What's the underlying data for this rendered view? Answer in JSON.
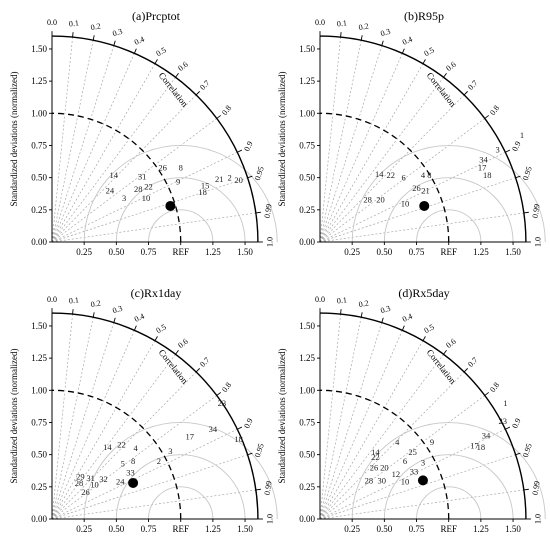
{
  "figure": {
    "ylabel": "Standardized deviations (normalized)",
    "corr_label": "Correlation",
    "ref_label": "REF"
  },
  "chart_data": [
    {
      "type": "scatter",
      "title": "(a)Prcptot",
      "ylabel": "Standardized deviations (normalized)",
      "arc_label": "Correlation",
      "std_ticks": [
        "0.00",
        "0.25",
        "0.50",
        "0.75",
        "1.00",
        "1.25",
        "1.50"
      ],
      "corr_ticks": [
        "0.0",
        "0.1",
        "0.2",
        "0.3",
        "0.4",
        "0.5",
        "0.6",
        "0.7",
        "0.8",
        "0.9",
        "0.95",
        "0.99",
        "1.0"
      ],
      "ref_label": "REF",
      "reference": {
        "std": 1.0,
        "corr": 1.0
      },
      "observation": {
        "x": 0.92,
        "y": 0.28
      },
      "models": [
        {
          "label": "26",
          "x": 0.86,
          "y": 0.58
        },
        {
          "label": "8",
          "x": 1.0,
          "y": 0.58
        },
        {
          "label": "14",
          "x": 0.48,
          "y": 0.52
        },
        {
          "label": "31",
          "x": 0.7,
          "y": 0.51
        },
        {
          "label": "9",
          "x": 0.98,
          "y": 0.47
        },
        {
          "label": "24",
          "x": 0.45,
          "y": 0.4
        },
        {
          "label": "22",
          "x": 0.75,
          "y": 0.43
        },
        {
          "label": "28",
          "x": 0.67,
          "y": 0.41
        },
        {
          "label": "2",
          "x": 1.38,
          "y": 0.5
        },
        {
          "label": "21",
          "x": 1.3,
          "y": 0.49
        },
        {
          "label": "20",
          "x": 1.45,
          "y": 0.48
        },
        {
          "label": "15",
          "x": 1.19,
          "y": 0.44
        },
        {
          "label": "18",
          "x": 1.17,
          "y": 0.39
        },
        {
          "label": "3",
          "x": 0.56,
          "y": 0.34
        },
        {
          "label": "10",
          "x": 0.73,
          "y": 0.34
        }
      ]
    },
    {
      "type": "scatter",
      "title": "(b)R95p",
      "ylabel": "Standardized deviations (normalized)",
      "arc_label": "Correlation",
      "std_ticks": [
        "0.00",
        "0.25",
        "0.50",
        "0.75",
        "1.00",
        "1.25",
        "1.50"
      ],
      "corr_ticks": [
        "0.0",
        "0.1",
        "0.2",
        "0.3",
        "0.4",
        "0.5",
        "0.6",
        "0.7",
        "0.8",
        "0.9",
        "0.95",
        "0.99",
        "1.0"
      ],
      "ref_label": "REF",
      "reference": {
        "std": 1.0,
        "corr": 1.0
      },
      "observation": {
        "x": 0.81,
        "y": 0.28
      },
      "models": [
        {
          "label": "1",
          "x": 1.57,
          "y": 0.83
        },
        {
          "label": "3",
          "x": 1.38,
          "y": 0.72
        },
        {
          "label": "34",
          "x": 1.27,
          "y": 0.64
        },
        {
          "label": "17",
          "x": 1.26,
          "y": 0.58
        },
        {
          "label": "18",
          "x": 1.3,
          "y": 0.52
        },
        {
          "label": "14",
          "x": 0.46,
          "y": 0.53
        },
        {
          "label": "22",
          "x": 0.55,
          "y": 0.52
        },
        {
          "label": "6",
          "x": 0.65,
          "y": 0.5
        },
        {
          "label": "4",
          "x": 0.8,
          "y": 0.52
        },
        {
          "label": "8",
          "x": 0.85,
          "y": 0.52
        },
        {
          "label": "26",
          "x": 0.75,
          "y": 0.42
        },
        {
          "label": "21",
          "x": 0.82,
          "y": 0.4
        },
        {
          "label": "28",
          "x": 0.37,
          "y": 0.33
        },
        {
          "label": "20",
          "x": 0.47,
          "y": 0.33
        },
        {
          "label": "10",
          "x": 0.66,
          "y": 0.3
        }
      ]
    },
    {
      "type": "scatter",
      "title": "(c)Rx1day",
      "ylabel": "Standardized deviations (normalized)",
      "arc_label": "Correlation",
      "std_ticks": [
        "0.00",
        "0.25",
        "0.50",
        "0.75",
        "1.00",
        "1.25",
        "1.50"
      ],
      "corr_ticks": [
        "0.0",
        "0.1",
        "0.2",
        "0.3",
        "0.4",
        "0.5",
        "0.6",
        "0.7",
        "0.8",
        "0.9",
        "0.95",
        "0.99",
        "1.0"
      ],
      "ref_label": "REF",
      "reference": {
        "std": 1.0,
        "corr": 1.0
      },
      "observation": {
        "x": 0.63,
        "y": 0.28
      },
      "models": [
        {
          "label": "23",
          "x": 1.32,
          "y": 0.9
        },
        {
          "label": "34",
          "x": 1.25,
          "y": 0.7
        },
        {
          "label": "17",
          "x": 1.07,
          "y": 0.64
        },
        {
          "label": "18",
          "x": 1.45,
          "y": 0.62
        },
        {
          "label": "14",
          "x": 0.43,
          "y": 0.56
        },
        {
          "label": "22",
          "x": 0.54,
          "y": 0.58
        },
        {
          "label": "4",
          "x": 0.65,
          "y": 0.55
        },
        {
          "label": "3",
          "x": 0.92,
          "y": 0.53
        },
        {
          "label": "2",
          "x": 0.83,
          "y": 0.45
        },
        {
          "label": "5",
          "x": 0.55,
          "y": 0.43
        },
        {
          "label": "8",
          "x": 0.63,
          "y": 0.45
        },
        {
          "label": "33",
          "x": 0.61,
          "y": 0.36
        },
        {
          "label": "29",
          "x": 0.22,
          "y": 0.33
        },
        {
          "label": "31",
          "x": 0.3,
          "y": 0.32
        },
        {
          "label": "32",
          "x": 0.4,
          "y": 0.31
        },
        {
          "label": "24",
          "x": 0.53,
          "y": 0.29
        },
        {
          "label": "28",
          "x": 0.21,
          "y": 0.28
        },
        {
          "label": "10",
          "x": 0.33,
          "y": 0.27
        },
        {
          "label": "26",
          "x": 0.26,
          "y": 0.21
        }
      ]
    },
    {
      "type": "scatter",
      "title": "(d)Rx5day",
      "ylabel": "Standardized deviations (normalized)",
      "arc_label": "Correlation",
      "std_ticks": [
        "0.00",
        "0.25",
        "0.50",
        "0.75",
        "1.00",
        "1.25",
        "1.50"
      ],
      "corr_ticks": [
        "0.0",
        "0.1",
        "0.2",
        "0.3",
        "0.4",
        "0.5",
        "0.6",
        "0.7",
        "0.8",
        "0.9",
        "0.95",
        "0.99",
        "1.0"
      ],
      "ref_label": "REF",
      "reference": {
        "std": 1.0,
        "corr": 1.0
      },
      "observation": {
        "x": 0.8,
        "y": 0.3
      },
      "models": [
        {
          "label": "1",
          "x": 1.44,
          "y": 0.9
        },
        {
          "label": "23",
          "x": 1.42,
          "y": 0.76
        },
        {
          "label": "34",
          "x": 1.29,
          "y": 0.65
        },
        {
          "label": "17",
          "x": 1.2,
          "y": 0.57
        },
        {
          "label": "18",
          "x": 1.25,
          "y": 0.56
        },
        {
          "label": "4",
          "x": 0.6,
          "y": 0.6
        },
        {
          "label": "9",
          "x": 0.87,
          "y": 0.6
        },
        {
          "label": "14",
          "x": 0.43,
          "y": 0.52
        },
        {
          "label": "22",
          "x": 0.43,
          "y": 0.48
        },
        {
          "label": "25",
          "x": 0.72,
          "y": 0.52
        },
        {
          "label": "6",
          "x": 0.66,
          "y": 0.45
        },
        {
          "label": "3",
          "x": 0.8,
          "y": 0.44
        },
        {
          "label": "20",
          "x": 0.5,
          "y": 0.4
        },
        {
          "label": "26",
          "x": 0.42,
          "y": 0.4
        },
        {
          "label": "33",
          "x": 0.73,
          "y": 0.37
        },
        {
          "label": "28",
          "x": 0.38,
          "y": 0.3
        },
        {
          "label": "30",
          "x": 0.48,
          "y": 0.3
        },
        {
          "label": "10",
          "x": 0.66,
          "y": 0.29
        },
        {
          "label": "12",
          "x": 0.59,
          "y": 0.35
        }
      ]
    }
  ]
}
